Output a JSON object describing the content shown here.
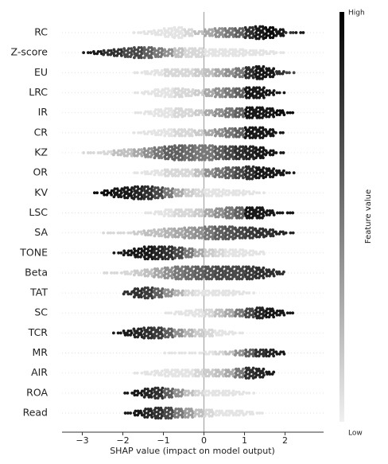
{
  "chart_data": {
    "type": "beeswarm",
    "features": [
      "RC",
      "Z-score",
      "EU",
      "LRC",
      "IR",
      "CR",
      "KZ",
      "OR",
      "KV",
      "LSC",
      "SA",
      "TONE",
      "Beta",
      "TAT",
      "SC",
      "TCR",
      "MR",
      "AIR",
      "ROA",
      "Read"
    ],
    "bins": [
      -3,
      -2.75,
      -2.5,
      -2.25,
      -2,
      -1.75,
      -1.5,
      -1.25,
      -1,
      -0.75,
      -0.5,
      -0.25,
      0,
      0.25,
      0.5,
      0.75,
      1,
      1.25,
      1.5,
      1.75,
      2,
      2.25,
      2.5
    ],
    "counts": [
      [
        0,
        0,
        0,
        0,
        0,
        1,
        2,
        3,
        5,
        6,
        4,
        2,
        4,
        5,
        5,
        5,
        6,
        7,
        6,
        4,
        1,
        1
      ],
      [
        1,
        2,
        3,
        4,
        5,
        6,
        6,
        5,
        4,
        5,
        5,
        5,
        4,
        4,
        4,
        4,
        3,
        3,
        2,
        1,
        0,
        0
      ],
      [
        0,
        0,
        0,
        0,
        0,
        1,
        2,
        3,
        4,
        4,
        4,
        4,
        4,
        4,
        4,
        5,
        6,
        7,
        5,
        2,
        1,
        0
      ],
      [
        0,
        0,
        0,
        0,
        0,
        1,
        2,
        4,
        5,
        5,
        4,
        3,
        4,
        5,
        5,
        5,
        6,
        6,
        3,
        1,
        0,
        0
      ],
      [
        0,
        0,
        0,
        0,
        0,
        1,
        2,
        4,
        5,
        5,
        4,
        3,
        3,
        4,
        5,
        5,
        6,
        6,
        5,
        3,
        1,
        0
      ],
      [
        0,
        0,
        0,
        0,
        0,
        1,
        2,
        3,
        4,
        4,
        4,
        3,
        3,
        4,
        5,
        5,
        6,
        6,
        4,
        1,
        0,
        0
      ],
      [
        1,
        1,
        2,
        3,
        4,
        4,
        5,
        6,
        7,
        8,
        8,
        8,
        8,
        7,
        7,
        7,
        7,
        6,
        3,
        1,
        0,
        0
      ],
      [
        0,
        0,
        0,
        0,
        0,
        1,
        2,
        3,
        4,
        4,
        4,
        4,
        4,
        5,
        6,
        6,
        7,
        6,
        5,
        3,
        1,
        0
      ],
      [
        0,
        1,
        3,
        5,
        6,
        7,
        7,
        6,
        5,
        4,
        4,
        4,
        4,
        4,
        3,
        3,
        2,
        1,
        0,
        0,
        0,
        0
      ],
      [
        0,
        0,
        0,
        0,
        0,
        0,
        1,
        2,
        4,
        4,
        4,
        4,
        4,
        5,
        6,
        6,
        6,
        6,
        3,
        1,
        1,
        0
      ],
      [
        0,
        0,
        1,
        1,
        1,
        2,
        3,
        4,
        5,
        5,
        6,
        6,
        7,
        7,
        7,
        6,
        6,
        5,
        4,
        2,
        1,
        0
      ],
      [
        0,
        0,
        0,
        1,
        3,
        5,
        7,
        7,
        7,
        6,
        5,
        4,
        4,
        4,
        4,
        4,
        3,
        2,
        0,
        0,
        0,
        0
      ],
      [
        0,
        0,
        1,
        1,
        2,
        3,
        4,
        5,
        6,
        7,
        7,
        7,
        7,
        7,
        7,
        7,
        7,
        6,
        4,
        2,
        0,
        0
      ],
      [
        0,
        0,
        0,
        0,
        2,
        5,
        6,
        5,
        4,
        3,
        3,
        3,
        3,
        3,
        3,
        2,
        1,
        0,
        0,
        0,
        0,
        0
      ],
      [
        0,
        0,
        0,
        0,
        0,
        0,
        0,
        0,
        1,
        2,
        3,
        4,
        4,
        4,
        4,
        4,
        5,
        6,
        5,
        3,
        1,
        0
      ],
      [
        0,
        0,
        0,
        1,
        3,
        5,
        6,
        6,
        5,
        4,
        4,
        4,
        4,
        3,
        2,
        1,
        0,
        0,
        0,
        0,
        0,
        0
      ],
      [
        0,
        0,
        0,
        0,
        0,
        0,
        0,
        0,
        1,
        1,
        1,
        1,
        2,
        2,
        2,
        3,
        4,
        4,
        4,
        2,
        0,
        0
      ],
      [
        0,
        0,
        0,
        0,
        0,
        1,
        2,
        3,
        4,
        4,
        4,
        4,
        4,
        4,
        4,
        5,
        6,
        5,
        2,
        0,
        0,
        0
      ],
      [
        0,
        0,
        0,
        0,
        1,
        3,
        5,
        6,
        5,
        4,
        3,
        3,
        3,
        3,
        3,
        2,
        1,
        0,
        0,
        0,
        0,
        0
      ],
      [
        0,
        0,
        0,
        0,
        1,
        3,
        5,
        6,
        6,
        5,
        5,
        4,
        4,
        3,
        3,
        3,
        2,
        1,
        0,
        0,
        0,
        0
      ]
    ],
    "feature_values": [
      [
        null,
        null,
        null,
        null,
        null,
        0.05,
        0.05,
        0.05,
        0.05,
        0.05,
        0.1,
        0.2,
        0.3,
        0.4,
        0.5,
        0.6,
        0.8,
        0.9,
        0.95,
        0.9,
        0.8,
        0.9
      ],
      [
        0.9,
        0.9,
        0.8,
        0.8,
        0.7,
        0.7,
        0.6,
        0.5,
        0.4,
        0.2,
        0.1,
        0.1,
        0.05,
        0.05,
        0.05,
        0.05,
        0.05,
        0.05,
        0.05,
        0.05,
        null,
        null
      ],
      [
        null,
        null,
        null,
        null,
        null,
        0.05,
        0.05,
        0.05,
        0.1,
        0.1,
        0.1,
        0.15,
        0.2,
        0.3,
        0.4,
        0.5,
        0.8,
        0.9,
        0.9,
        0.8,
        0.7,
        null
      ],
      [
        null,
        null,
        null,
        null,
        null,
        0.05,
        0.05,
        0.05,
        0.05,
        0.1,
        0.1,
        0.15,
        0.3,
        0.4,
        0.5,
        0.6,
        0.9,
        0.9,
        0.9,
        0.9,
        null,
        null
      ],
      [
        null,
        null,
        null,
        null,
        null,
        0.05,
        0.05,
        0.05,
        0.05,
        0.1,
        0.1,
        0.15,
        0.3,
        0.4,
        0.5,
        0.6,
        0.9,
        0.9,
        0.9,
        0.95,
        0.95,
        null
      ],
      [
        null,
        null,
        null,
        null,
        null,
        0.05,
        0.05,
        0.05,
        0.05,
        0.1,
        0.1,
        0.15,
        0.3,
        0.4,
        0.5,
        0.6,
        0.9,
        0.9,
        0.9,
        0.9,
        null,
        null
      ],
      [
        0.1,
        0.1,
        0.1,
        0.2,
        0.2,
        0.3,
        0.4,
        0.5,
        0.6,
        0.6,
        0.55,
        0.5,
        0.5,
        0.6,
        0.7,
        0.8,
        0.85,
        0.9,
        0.9,
        0.9,
        null,
        null
      ],
      [
        null,
        null,
        null,
        null,
        null,
        0.05,
        0.05,
        0.05,
        0.1,
        0.1,
        0.1,
        0.2,
        0.4,
        0.5,
        0.6,
        0.7,
        0.8,
        0.9,
        0.9,
        0.9,
        0.9,
        null
      ],
      [
        null,
        0.95,
        0.95,
        0.9,
        0.9,
        0.85,
        0.8,
        0.7,
        0.5,
        0.3,
        0.15,
        0.1,
        0.05,
        0.05,
        0.05,
        0.05,
        0.05,
        0.05,
        null,
        null,
        null,
        null
      ],
      [
        null,
        null,
        null,
        null,
        null,
        null,
        0.05,
        0.05,
        0.05,
        0.1,
        0.1,
        0.15,
        0.3,
        0.4,
        0.5,
        0.6,
        0.9,
        0.9,
        0.9,
        0.9,
        0.9,
        null
      ],
      [
        null,
        null,
        0.1,
        0.1,
        0.1,
        0.15,
        0.2,
        0.2,
        0.25,
        0.3,
        0.35,
        0.4,
        0.5,
        0.6,
        0.65,
        0.7,
        0.75,
        0.8,
        0.8,
        0.85,
        0.85,
        null
      ],
      [
        null,
        null,
        null,
        0.9,
        0.9,
        0.9,
        0.9,
        0.85,
        0.8,
        0.7,
        0.5,
        0.3,
        0.15,
        0.1,
        0.05,
        0.05,
        0.05,
        0.05,
        null,
        null,
        null,
        null
      ],
      [
        null,
        null,
        0.1,
        0.1,
        0.1,
        0.15,
        0.2,
        0.3,
        0.4,
        0.5,
        0.55,
        0.6,
        0.65,
        0.7,
        0.7,
        0.7,
        0.75,
        0.8,
        0.8,
        0.8,
        null,
        null
      ],
      [
        null,
        null,
        null,
        null,
        0.8,
        0.8,
        0.75,
        0.6,
        0.4,
        0.25,
        0.1,
        0.05,
        0.05,
        0.05,
        0.05,
        0.05,
        0.05,
        null,
        null,
        null,
        null,
        null
      ],
      [
        null,
        null,
        null,
        null,
        null,
        null,
        null,
        null,
        0.05,
        0.05,
        0.05,
        0.05,
        0.1,
        0.2,
        0.3,
        0.5,
        0.7,
        0.85,
        0.9,
        0.9,
        0.9,
        null
      ],
      [
        null,
        null,
        null,
        0.9,
        0.9,
        0.85,
        0.8,
        0.75,
        0.6,
        0.4,
        0.25,
        0.15,
        0.1,
        0.05,
        0.05,
        0.05,
        null,
        null,
        null,
        null,
        null,
        null
      ],
      [
        null,
        null,
        null,
        null,
        null,
        null,
        null,
        null,
        0.05,
        0.05,
        0.05,
        0.05,
        0.05,
        0.1,
        0.2,
        0.4,
        0.6,
        0.8,
        0.85,
        0.9,
        null,
        null
      ],
      [
        null,
        null,
        null,
        null,
        null,
        0.05,
        0.05,
        0.05,
        0.05,
        0.05,
        0.05,
        0.1,
        0.15,
        0.2,
        0.3,
        0.5,
        0.8,
        0.85,
        0.9,
        null,
        null,
        null
      ],
      [
        null,
        null,
        null,
        null,
        0.9,
        0.9,
        0.85,
        0.8,
        0.6,
        0.4,
        0.2,
        0.1,
        0.05,
        0.05,
        0.05,
        0.05,
        0.05,
        null,
        null,
        null,
        null,
        null
      ],
      [
        null,
        null,
        null,
        null,
        0.9,
        0.9,
        0.85,
        0.8,
        0.7,
        0.5,
        0.35,
        0.2,
        0.1,
        0.05,
        0.05,
        0.05,
        0.05,
        0.05,
        null,
        null,
        null,
        null
      ]
    ],
    "xlabel": "SHAP value (impact on model output)",
    "xlim": [
      -3.5,
      2.95
    ],
    "xticks": [
      {
        "value": -3,
        "label": "−3"
      },
      {
        "value": -2,
        "label": "−2"
      },
      {
        "value": -1,
        "label": "−1"
      },
      0,
      1,
      2
    ],
    "reference_line": 0,
    "colorbar": {
      "label": "Feature value",
      "high": "High",
      "low": "Low"
    },
    "colors": {
      "low": "#f0f0f0",
      "high": "#000000"
    }
  }
}
